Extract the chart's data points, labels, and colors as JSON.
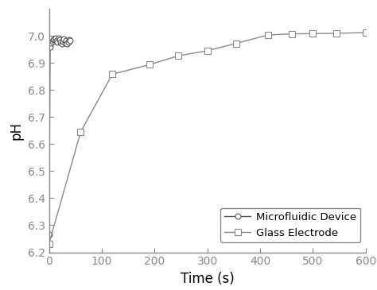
{
  "title": "",
  "xlabel": "Time (s)",
  "ylabel": "pH",
  "xlim": [
    0,
    600
  ],
  "ylim": [
    6.2,
    7.1
  ],
  "yticks": [
    6.2,
    6.3,
    6.4,
    6.5,
    6.6,
    6.7,
    6.8,
    6.9,
    7.0
  ],
  "xticks": [
    0,
    100,
    200,
    300,
    400,
    500,
    600
  ],
  "spine_color": "#888888",
  "micro_line_color": "#555555",
  "glass_line_color": "#888888",
  "microfluidic_x": [
    0,
    2,
    4,
    6,
    8,
    10,
    12,
    14,
    16,
    18,
    20,
    22,
    24,
    26,
    28,
    30,
    32,
    34,
    36,
    38,
    40
  ],
  "microfluidic_y": [
    6.265,
    6.96,
    6.975,
    6.98,
    6.985,
    6.988,
    6.99,
    6.982,
    6.978,
    6.992,
    6.985,
    6.978,
    6.972,
    6.98,
    6.988,
    6.975,
    6.982,
    6.97,
    6.978,
    6.985,
    6.982
  ],
  "glass_x": [
    0,
    60,
    120,
    190,
    245,
    300,
    355,
    415,
    460,
    500,
    545,
    600
  ],
  "glass_y": [
    6.232,
    6.645,
    6.858,
    6.893,
    6.926,
    6.945,
    6.972,
    7.003,
    7.007,
    7.008,
    7.009,
    7.012
  ],
  "legend_labels": [
    "Microfluidic Device",
    "Glass Electrode"
  ],
  "figsize": [
    4.74,
    3.65
  ],
  "dpi": 100
}
